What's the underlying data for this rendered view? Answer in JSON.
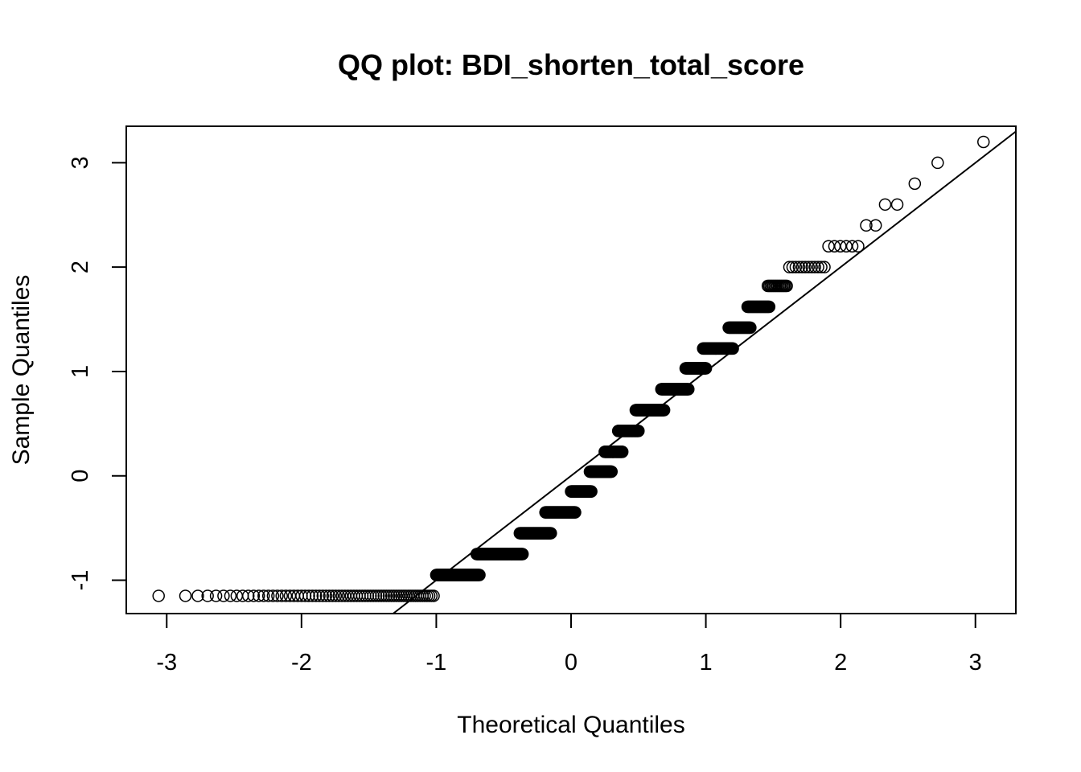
{
  "chart_data": {
    "type": "scatter",
    "title": "QQ plot: BDI_shorten_total_score",
    "xlabel": "Theoretical Quantiles",
    "ylabel": "Sample Quantiles",
    "xlim": [
      -3.3,
      3.3
    ],
    "ylim": [
      -1.32,
      3.35
    ],
    "xticks": [
      -3,
      -2,
      -1,
      0,
      1,
      2,
      3
    ],
    "xtick_labels": [
      "-3",
      "-2",
      "-1",
      "0",
      "1",
      "2",
      "3"
    ],
    "yticks": [
      -1,
      0,
      1,
      2,
      3
    ],
    "ytick_labels": [
      "-1",
      "0",
      "1",
      "2",
      "3"
    ],
    "reference_line": {
      "slope": 1.0,
      "intercept": 0.0
    },
    "marker": "open-circle",
    "color": "#000000",
    "sample_levels": [
      {
        "y": -1.15,
        "x_from": -3.06,
        "x_to": -1.02,
        "n": 70
      },
      {
        "y": -0.95,
        "x_from": -1.0,
        "x_to": -0.68,
        "n": 70
      },
      {
        "y": -0.75,
        "x_from": -0.7,
        "x_to": -0.36,
        "n": 70
      },
      {
        "y": -0.55,
        "x_from": -0.38,
        "x_to": -0.15,
        "n": 60
      },
      {
        "y": -0.35,
        "x_from": -0.19,
        "x_to": 0.03,
        "n": 60
      },
      {
        "y": -0.15,
        "x_from": 0.0,
        "x_to": 0.15,
        "n": 50
      },
      {
        "y": 0.04,
        "x_from": 0.14,
        "x_to": 0.3,
        "n": 50
      },
      {
        "y": 0.23,
        "x_from": 0.25,
        "x_to": 0.38,
        "n": 45
      },
      {
        "y": 0.43,
        "x_from": 0.35,
        "x_to": 0.5,
        "n": 45
      },
      {
        "y": 0.63,
        "x_from": 0.48,
        "x_to": 0.69,
        "n": 50
      },
      {
        "y": 0.83,
        "x_from": 0.67,
        "x_to": 0.87,
        "n": 50
      },
      {
        "y": 1.03,
        "x_from": 0.85,
        "x_to": 1.0,
        "n": 40
      },
      {
        "y": 1.22,
        "x_from": 0.98,
        "x_to": 1.2,
        "n": 40
      },
      {
        "y": 1.42,
        "x_from": 1.17,
        "x_to": 1.33,
        "n": 30
      },
      {
        "y": 1.62,
        "x_from": 1.31,
        "x_to": 1.47,
        "n": 25
      },
      {
        "y": 1.82,
        "x_from": 1.46,
        "x_to": 1.6,
        "n": 15
      },
      {
        "y": 2.0,
        "x_from": 1.62,
        "x_to": 1.88,
        "n": 12
      },
      {
        "y": 2.2,
        "x_from": 1.91,
        "x_to": 2.13,
        "n": 6
      }
    ],
    "points": [
      {
        "x": 2.19,
        "y": 2.4
      },
      {
        "x": 2.26,
        "y": 2.4
      },
      {
        "x": 2.33,
        "y": 2.6
      },
      {
        "x": 2.42,
        "y": 2.6
      },
      {
        "x": 2.55,
        "y": 2.8
      },
      {
        "x": 2.72,
        "y": 3.0
      },
      {
        "x": 3.06,
        "y": 3.2
      }
    ]
  }
}
